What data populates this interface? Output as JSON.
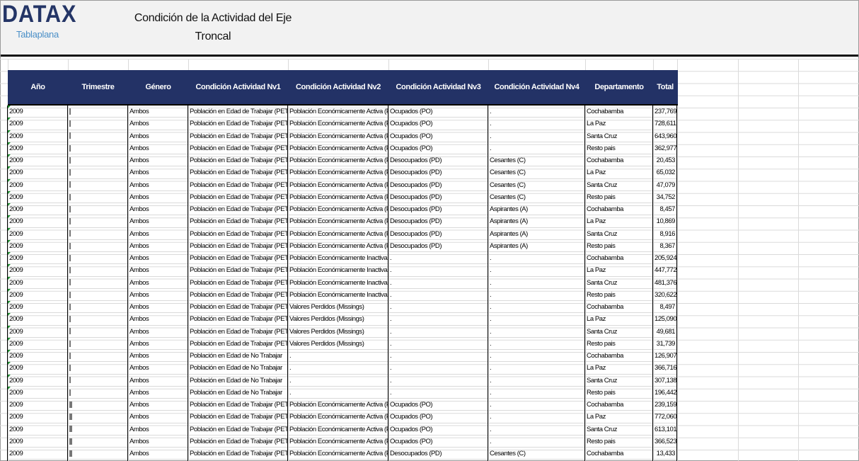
{
  "header": {
    "logo": "DATAX",
    "sublogo": "Tablaplana",
    "title_line1": "Condición de la Actividad del Eje",
    "title_line2": "Troncal"
  },
  "colors": {
    "header_bg": "#233266",
    "logo": "#243566",
    "sublogo": "#4a8fc7"
  },
  "table": {
    "columns": [
      "Año",
      "Trimestre",
      "Género",
      "Condición Actividad Nv1",
      "Condición Actividad Nv2",
      "Condición Actividad Nv3",
      "Condición Actividad Nv4",
      "Departamento",
      "Total"
    ],
    "rows": [
      [
        "2009",
        "I",
        "Ambos",
        "Población en Edad de Trabajar (PET)",
        "Población Económicamente Activa (PEA)",
        "Ocupados (PO)",
        ".",
        "Cochabamba",
        "237,769"
      ],
      [
        "2009",
        "I",
        "Ambos",
        "Población en Edad de Trabajar (PET)",
        "Población Económicamente Activa (PEA)",
        "Ocupados (PO)",
        ".",
        "La Paz",
        "728,611"
      ],
      [
        "2009",
        "I",
        "Ambos",
        "Población en Edad de Trabajar (PET)",
        "Población Económicamente Activa (PEA)",
        "Ocupados (PO)",
        ".",
        "Santa Cruz",
        "643,960"
      ],
      [
        "2009",
        "I",
        "Ambos",
        "Población en Edad de Trabajar (PET)",
        "Población Económicamente Activa (PEA)",
        "Ocupados (PO)",
        ".",
        "Resto pais",
        "362,977"
      ],
      [
        "2009",
        "I",
        "Ambos",
        "Población en Edad de Trabajar (PET)",
        "Población Económicamente Activa (PEA)",
        "Desocupados (PD)",
        "Cesantes (C)",
        "Cochabamba",
        "20,453"
      ],
      [
        "2009",
        "I",
        "Ambos",
        "Población en Edad de Trabajar (PET)",
        "Población Económicamente Activa (PEA)",
        "Desocupados (PD)",
        "Cesantes (C)",
        "La Paz",
        "65,032"
      ],
      [
        "2009",
        "I",
        "Ambos",
        "Población en Edad de Trabajar (PET)",
        "Población Económicamente Activa (PEA)",
        "Desocupados (PD)",
        "Cesantes (C)",
        "Santa Cruz",
        "47,079"
      ],
      [
        "2009",
        "I",
        "Ambos",
        "Población en Edad de Trabajar (PET)",
        "Población Económicamente Activa (PEA)",
        "Desocupados (PD)",
        "Cesantes (C)",
        "Resto pais",
        "34,752"
      ],
      [
        "2009",
        "I",
        "Ambos",
        "Población en Edad de Trabajar (PET)",
        "Población Económicamente Activa (PEA)",
        "Desocupados (PD)",
        "Aspirantes (A)",
        "Cochabamba",
        "8,457"
      ],
      [
        "2009",
        "I",
        "Ambos",
        "Población en Edad de Trabajar (PET)",
        "Población Económicamente Activa (PEA)",
        "Desocupados (PD)",
        "Aspirantes (A)",
        "La Paz",
        "10,869"
      ],
      [
        "2009",
        "I",
        "Ambos",
        "Población en Edad de Trabajar (PET)",
        "Población Económicamente Activa (PEA)",
        "Desocupados (PD)",
        "Aspirantes (A)",
        "Santa Cruz",
        "8,916"
      ],
      [
        "2009",
        "I",
        "Ambos",
        "Población en Edad de Trabajar (PET)",
        "Población Económicamente Activa (PEA)",
        "Desocupados (PD)",
        "Aspirantes (A)",
        "Resto pais",
        "8,367"
      ],
      [
        "2009",
        "I",
        "Ambos",
        "Población en Edad de Trabajar (PET)",
        "Población Económicamente Inactiva (PEI)",
        ".",
        ".",
        "Cochabamba",
        "205,924"
      ],
      [
        "2009",
        "I",
        "Ambos",
        "Población en Edad de Trabajar (PET)",
        "Población Económicamente Inactiva (PEI)",
        ".",
        ".",
        "La Paz",
        "447,772"
      ],
      [
        "2009",
        "I",
        "Ambos",
        "Población en Edad de Trabajar (PET)",
        "Población Económicamente Inactiva (PEI)",
        ".",
        ".",
        "Santa Cruz",
        "481,376"
      ],
      [
        "2009",
        "I",
        "Ambos",
        "Población en Edad de Trabajar (PET)",
        "Población Económicamente Inactiva (PEI)",
        ".",
        ".",
        "Resto pais",
        "320,622"
      ],
      [
        "2009",
        "I",
        "Ambos",
        "Población en Edad de Trabajar (PET)",
        "Valores Perdidos (Missings)",
        ".",
        ".",
        "Cochabamba",
        "8,497"
      ],
      [
        "2009",
        "I",
        "Ambos",
        "Población en Edad de Trabajar (PET)",
        "Valores Perdidos (Missings)",
        ".",
        ".",
        "La Paz",
        "125,090"
      ],
      [
        "2009",
        "I",
        "Ambos",
        "Población en Edad de Trabajar (PET)",
        "Valores Perdidos (Missings)",
        ".",
        ".",
        "Santa Cruz",
        "49,681"
      ],
      [
        "2009",
        "I",
        "Ambos",
        "Población en Edad de Trabajar (PET)",
        "Valores Perdidos (Missings)",
        ".",
        ".",
        "Resto pais",
        "31,739"
      ],
      [
        "2009",
        "I",
        "Ambos",
        "Población en Edad de No Trabajar",
        ".",
        ".",
        ".",
        "Cochabamba",
        "126,907"
      ],
      [
        "2009",
        "I",
        "Ambos",
        "Población en Edad de No Trabajar",
        ".",
        ".",
        ".",
        "La Paz",
        "366,716"
      ],
      [
        "2009",
        "I",
        "Ambos",
        "Población en Edad de No Trabajar",
        ".",
        ".",
        ".",
        "Santa Cruz",
        "307,138"
      ],
      [
        "2009",
        "I",
        "Ambos",
        "Población en Edad de No Trabajar",
        ".",
        ".",
        ".",
        "Resto pais",
        "196,442"
      ],
      [
        "2009",
        "II",
        "Ambos",
        "Población en Edad de Trabajar (PET)",
        "Población Económicamente Activa (PEA)",
        "Ocupados (PO)",
        ".",
        "Cochabamba",
        "239,159"
      ],
      [
        "2009",
        "II",
        "Ambos",
        "Población en Edad de Trabajar (PET)",
        "Población Económicamente Activa (PEA)",
        "Ocupados (PO)",
        ".",
        "La Paz",
        "772,060"
      ],
      [
        "2009",
        "II",
        "Ambos",
        "Población en Edad de Trabajar (PET)",
        "Población Económicamente Activa (PEA)",
        "Ocupados (PO)",
        ".",
        "Santa Cruz",
        "613,101"
      ],
      [
        "2009",
        "II",
        "Ambos",
        "Población en Edad de Trabajar (PET)",
        "Población Económicamente Activa (PEA)",
        "Ocupados (PO)",
        ".",
        "Resto pais",
        "366,523"
      ],
      [
        "2009",
        "II",
        "Ambos",
        "Población en Edad de Trabajar (PET)",
        "Población Económicamente Activa (PEA)",
        "Desocupados (PD)",
        "Cesantes (C)",
        "Cochabamba",
        "13,433"
      ]
    ]
  }
}
